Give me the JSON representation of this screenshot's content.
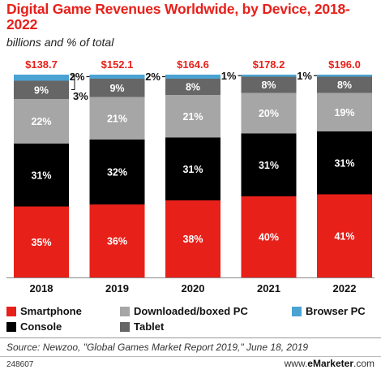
{
  "header": {
    "title": "Digital Game Revenues Worldwide, by Device, 2018-2022",
    "subtitle": "billions and % of total"
  },
  "colors": {
    "Smartphone": "#e8201a",
    "Console": "#000000",
    "Downloaded/boxed PC": "#a6a6a6",
    "Tablet": "#666666",
    "Browser PC": "#4ba3d3",
    "total_label": "#e8201a"
  },
  "chart_data": {
    "type": "bar",
    "stacked": true,
    "normalized": true,
    "categories": [
      "2018",
      "2019",
      "2020",
      "2021",
      "2022"
    ],
    "totals": [
      "$138.7",
      "$152.1",
      "$164.6",
      "$178.2",
      "$196.0"
    ],
    "series": [
      {
        "name": "Smartphone",
        "values": [
          35,
          36,
          38,
          40,
          41
        ],
        "labels": [
          "35%",
          "36%",
          "38%",
          "40%",
          "41%"
        ]
      },
      {
        "name": "Console",
        "values": [
          31,
          32,
          31,
          31,
          31
        ],
        "labels": [
          "31%",
          "32%",
          "31%",
          "31%",
          "31%"
        ]
      },
      {
        "name": "Downloaded/boxed PC",
        "values": [
          22,
          21,
          21,
          20,
          19
        ],
        "labels": [
          "22%",
          "21%",
          "21%",
          "20%",
          "19%"
        ]
      },
      {
        "name": "Tablet",
        "values": [
          9,
          9,
          8,
          8,
          8
        ],
        "labels": [
          "9%",
          "9%",
          "8%",
          "8%",
          "8%"
        ]
      },
      {
        "name": "Browser PC",
        "values": [
          3,
          2,
          2,
          1,
          1
        ],
        "labels": [
          "3%",
          "2%",
          "2%",
          "1%",
          "1%"
        ]
      }
    ],
    "ylim": [
      0,
      100
    ],
    "grid": false,
    "legend": "bottom"
  },
  "legend_items": [
    "Smartphone",
    "Downloaded/boxed PC",
    "Browser PC",
    "Console",
    "Tablet"
  ],
  "footer": {
    "source": "Source: Newzoo, \"Global Games Market Report 2019,\" June 18, 2019",
    "chart_id": "248607",
    "brand_prefix": "www.",
    "brand_name": "eMarketer",
    "brand_suffix": ".com"
  }
}
